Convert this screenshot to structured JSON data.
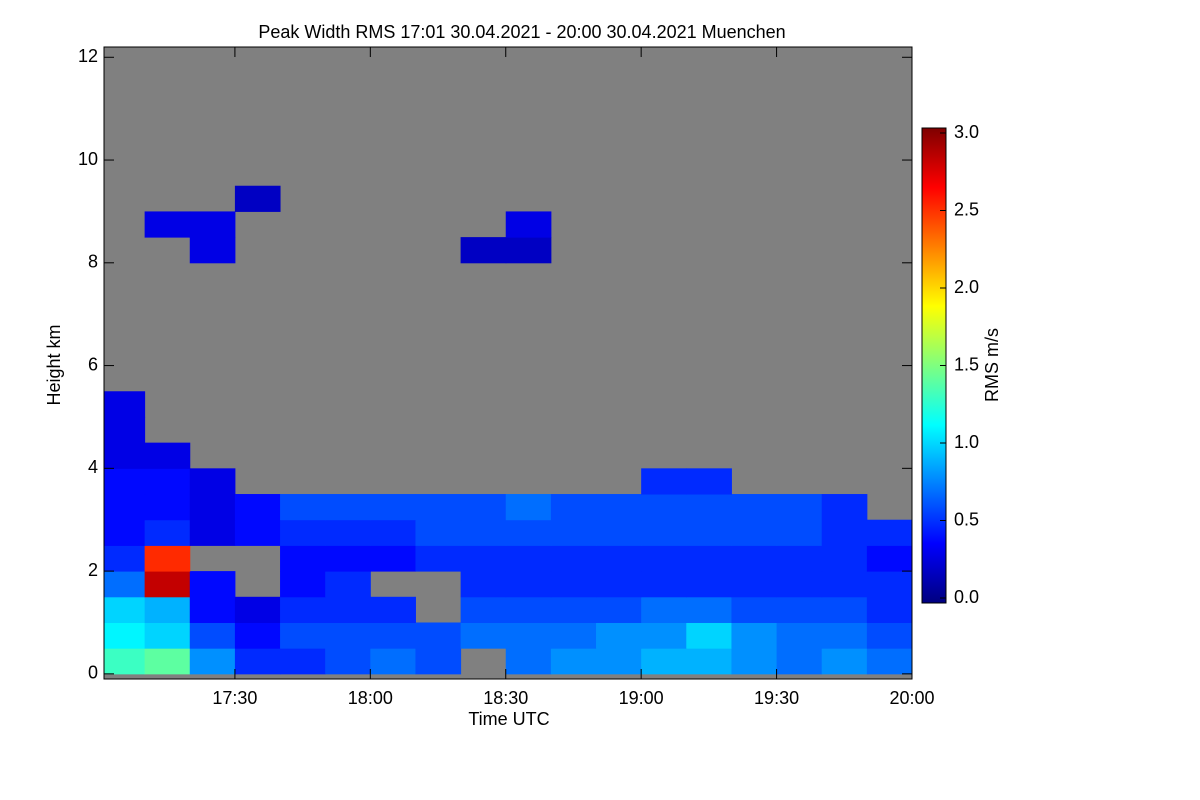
{
  "chart_data": {
    "type": "heatmap",
    "title": "Peak Width RMS   17:01 30.04.2021 - 20:00 30.04.2021 Muenchen",
    "x_label": "Time UTC",
    "y_label": "Height km",
    "colorbar_label": "RMS m/s",
    "xlim": [
      "17:01",
      "20:00"
    ],
    "xticks": [
      "17:30",
      "18:00",
      "18:30",
      "19:00",
      "19:30",
      "20:00"
    ],
    "ylim": [
      -0.1,
      12.2
    ],
    "yticks": [
      0,
      2,
      4,
      6,
      8,
      10,
      12
    ],
    "zlim": [
      0,
      3
    ],
    "zticks": [
      {
        "value": 0,
        "label": "0.0"
      },
      0.5,
      {
        "value": 1,
        "label": "1.0"
      },
      1.5,
      {
        "value": 2,
        "label": "2.0"
      },
      2.5,
      {
        "value": 3,
        "label": "3.0"
      }
    ],
    "colormap": [
      "#00007f",
      "#0000ff",
      "#007fff",
      "#00ffff",
      "#7fff7f",
      "#ffff00",
      "#ff7f00",
      "#ff0000",
      "#7f0000"
    ],
    "missing_color": "#808080",
    "x_edges": [
      "17:01",
      "17:10",
      "17:20",
      "17:30",
      "17:40",
      "17:50",
      "18:00",
      "18:10",
      "18:20",
      "18:30",
      "18:40",
      "18:50",
      "19:00",
      "19:10",
      "19:20",
      "19:30",
      "19:40",
      "19:50",
      "20:00"
    ],
    "y_edges": [
      0,
      0.5,
      1,
      1.5,
      2,
      2.5,
      3,
      3.5,
      4,
      4.5,
      5,
      5.5,
      6,
      6.5,
      7,
      7.5,
      8,
      8.5,
      9,
      9.5,
      10,
      10.5,
      11,
      11.5,
      12
    ],
    "z": [
      [
        1.3,
        1.4,
        0.8,
        0.5,
        0.5,
        0.6,
        0.7,
        0.6,
        null,
        0.7,
        0.8,
        0.8,
        0.9,
        0.9,
        0.8,
        0.7,
        0.8,
        0.7
      ],
      [
        1.1,
        1.0,
        0.6,
        0.4,
        0.6,
        0.6,
        0.6,
        0.6,
        0.7,
        0.7,
        0.7,
        0.8,
        0.8,
        1.0,
        0.8,
        0.7,
        0.7,
        0.6
      ],
      [
        1.0,
        0.9,
        0.4,
        0.3,
        0.5,
        0.5,
        0.5,
        null,
        0.6,
        0.6,
        0.6,
        0.6,
        0.7,
        0.7,
        0.6,
        0.6,
        0.6,
        0.5
      ],
      [
        0.7,
        2.8,
        0.4,
        null,
        0.4,
        0.5,
        null,
        null,
        0.5,
        0.5,
        0.5,
        0.5,
        0.5,
        0.5,
        0.5,
        0.5,
        0.5,
        0.5
      ],
      [
        0.5,
        2.5,
        null,
        null,
        0.4,
        0.4,
        0.4,
        0.5,
        0.5,
        0.5,
        0.5,
        0.5,
        0.5,
        0.5,
        0.5,
        0.5,
        0.5,
        0.4
      ],
      [
        0.4,
        0.5,
        0.3,
        0.4,
        0.5,
        0.5,
        0.5,
        0.6,
        0.6,
        0.6,
        0.6,
        0.6,
        0.6,
        0.6,
        0.6,
        0.6,
        0.5,
        0.5
      ],
      [
        0.4,
        0.4,
        0.3,
        0.4,
        0.6,
        0.6,
        0.6,
        0.6,
        0.6,
        0.7,
        0.6,
        0.6,
        0.6,
        0.6,
        0.6,
        0.6,
        0.5,
        null
      ],
      [
        0.4,
        0.4,
        0.3,
        null,
        null,
        null,
        null,
        null,
        null,
        null,
        null,
        null,
        0.5,
        0.5,
        null,
        null,
        null,
        null
      ],
      [
        0.3,
        0.3,
        null,
        null,
        null,
        null,
        null,
        null,
        null,
        null,
        null,
        null,
        null,
        null,
        null,
        null,
        null,
        null
      ],
      [
        0.3,
        null,
        null,
        null,
        null,
        null,
        null,
        null,
        null,
        null,
        null,
        null,
        null,
        null,
        null,
        null,
        null,
        null
      ],
      [
        0.3,
        null,
        null,
        null,
        null,
        null,
        null,
        null,
        null,
        null,
        null,
        null,
        null,
        null,
        null,
        null,
        null,
        null
      ],
      [
        null,
        null,
        null,
        null,
        null,
        null,
        null,
        null,
        null,
        null,
        null,
        null,
        null,
        null,
        null,
        null,
        null,
        null
      ],
      [
        null,
        null,
        null,
        null,
        null,
        null,
        null,
        null,
        null,
        null,
        null,
        null,
        null,
        null,
        null,
        null,
        null,
        null
      ],
      [
        null,
        null,
        null,
        null,
        null,
        null,
        null,
        null,
        null,
        null,
        null,
        null,
        null,
        null,
        null,
        null,
        null,
        null
      ],
      [
        null,
        null,
        null,
        null,
        null,
        null,
        null,
        null,
        null,
        null,
        null,
        null,
        null,
        null,
        null,
        null,
        null,
        null
      ],
      [
        null,
        null,
        null,
        null,
        null,
        null,
        null,
        null,
        null,
        null,
        null,
        null,
        null,
        null,
        null,
        null,
        null,
        null
      ],
      [
        null,
        null,
        0.3,
        null,
        null,
        null,
        null,
        null,
        0.2,
        0.2,
        null,
        null,
        null,
        null,
        null,
        null,
        null,
        null
      ],
      [
        null,
        0.3,
        0.3,
        null,
        null,
        null,
        null,
        null,
        null,
        0.3,
        null,
        null,
        null,
        null,
        null,
        null,
        null,
        null
      ],
      [
        null,
        null,
        null,
        0.2,
        null,
        null,
        null,
        null,
        null,
        null,
        null,
        null,
        null,
        null,
        null,
        null,
        null,
        null
      ],
      [
        null,
        null,
        null,
        null,
        null,
        null,
        null,
        null,
        null,
        null,
        null,
        null,
        null,
        null,
        null,
        null,
        null,
        null
      ],
      [
        null,
        null,
        null,
        null,
        null,
        null,
        null,
        null,
        null,
        null,
        null,
        null,
        null,
        null,
        null,
        null,
        null,
        null
      ],
      [
        null,
        null,
        null,
        null,
        null,
        null,
        null,
        null,
        null,
        null,
        null,
        null,
        null,
        null,
        null,
        null,
        null,
        null
      ],
      [
        null,
        null,
        null,
        null,
        null,
        null,
        null,
        null,
        null,
        null,
        null,
        null,
        null,
        null,
        null,
        null,
        null,
        null
      ],
      [
        null,
        null,
        null,
        null,
        null,
        null,
        null,
        null,
        null,
        null,
        null,
        null,
        null,
        null,
        null,
        null,
        null,
        null
      ]
    ]
  }
}
